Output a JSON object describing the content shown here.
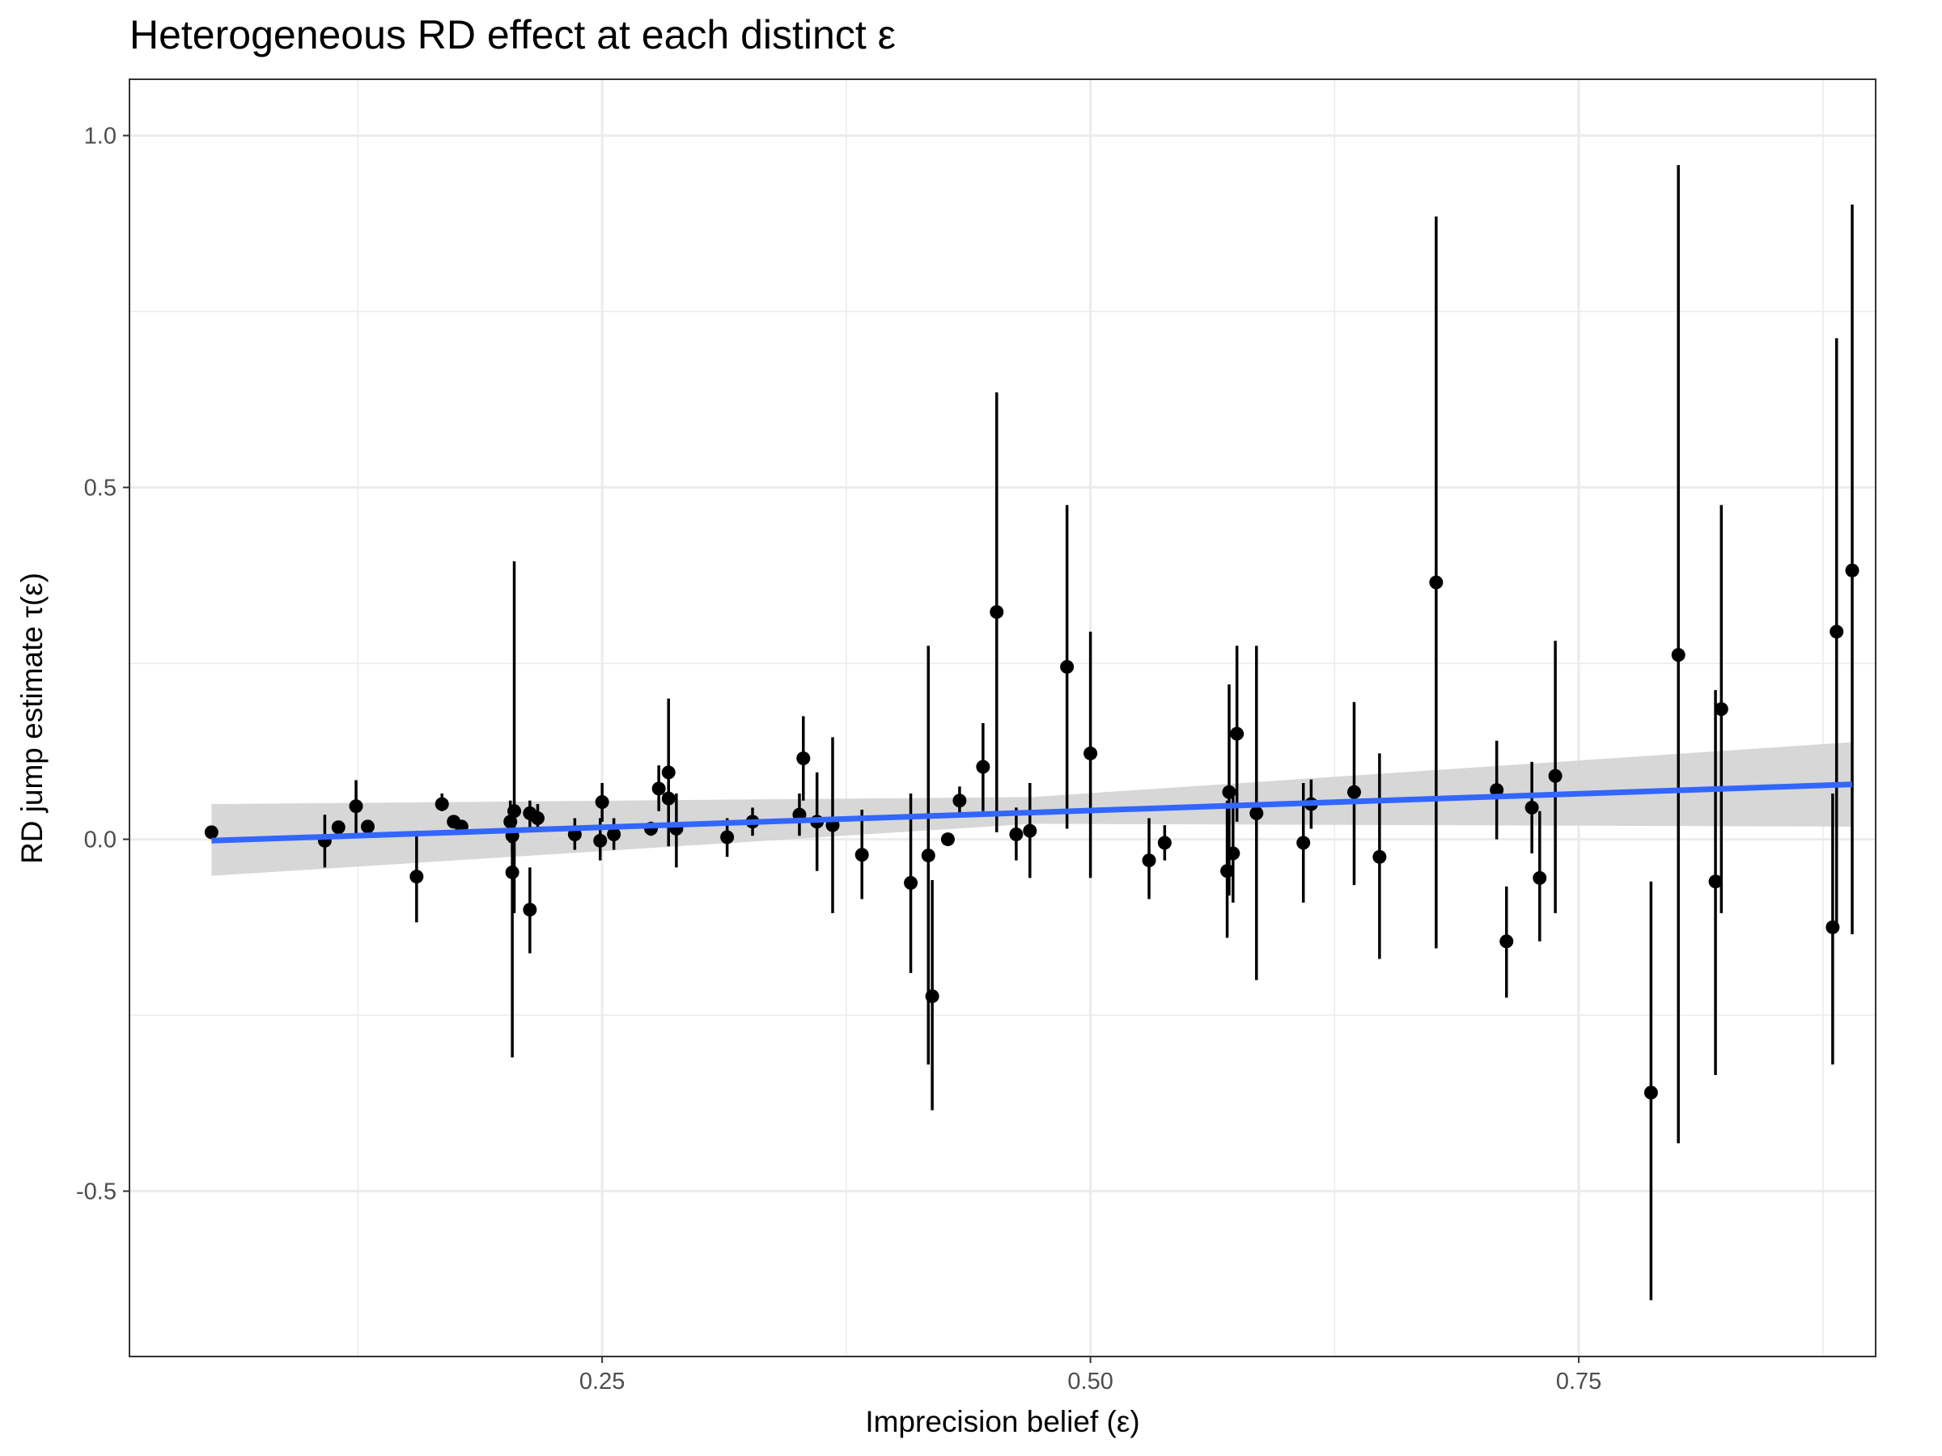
{
  "chart_data": {
    "type": "scatter",
    "title": "Heterogeneous RD effect at each distinct ε",
    "xlabel": "Imprecision belief (ε)",
    "ylabel": "RD jump estimate τ(ε)",
    "xlim": [
      0.008,
      0.902
    ],
    "ylim": [
      -0.735,
      1.08
    ],
    "x_ticks": [
      0.25,
      0.5,
      0.75
    ],
    "x_tick_labels": [
      "0.25",
      "0.50",
      "0.75"
    ],
    "y_ticks": [
      -0.5,
      0.0,
      0.5,
      1.0
    ],
    "y_tick_labels": [
      "-0.5",
      "0.0",
      "0.5",
      "1.0"
    ],
    "grid": true,
    "colors": {
      "points": "#000000",
      "error_bars": "#000000",
      "fit_line": "#3366FF",
      "ribbon": "#D3D3D3",
      "panel_border": "#333333",
      "grid": "#EBEBEB"
    },
    "series": [
      {
        "type": "pointrange",
        "points": [
          {
            "x": 0.05,
            "y": 0.01,
            "lo": 0.005,
            "hi": 0.015
          },
          {
            "x": 0.108,
            "y": -0.002,
            "lo": -0.04,
            "hi": 0.035
          },
          {
            "x": 0.115,
            "y": 0.017,
            "lo": 0.01,
            "hi": 0.024
          },
          {
            "x": 0.124,
            "y": 0.047,
            "lo": 0.005,
            "hi": 0.084
          },
          {
            "x": 0.13,
            "y": 0.018,
            "lo": 0.012,
            "hi": 0.024
          },
          {
            "x": 0.155,
            "y": -0.053,
            "lo": -0.118,
            "hi": 0.012
          },
          {
            "x": 0.168,
            "y": 0.05,
            "lo": 0.04,
            "hi": 0.065
          },
          {
            "x": 0.174,
            "y": 0.025,
            "lo": 0.018,
            "hi": 0.032
          },
          {
            "x": 0.178,
            "y": 0.018,
            "lo": 0.012,
            "hi": 0.024
          },
          {
            "x": 0.203,
            "y": 0.025,
            "lo": -0.005,
            "hi": 0.055
          },
          {
            "x": 0.205,
            "y": 0.04,
            "lo": -0.105,
            "hi": 0.395
          },
          {
            "x": 0.204,
            "y": -0.047,
            "lo": -0.31,
            "hi": 0.04
          },
          {
            "x": 0.204,
            "y": 0.005,
            "lo": -0.02,
            "hi": 0.03
          },
          {
            "x": 0.213,
            "y": -0.1,
            "lo": -0.162,
            "hi": -0.04
          },
          {
            "x": 0.213,
            "y": 0.037,
            "lo": 0.01,
            "hi": 0.055
          },
          {
            "x": 0.217,
            "y": 0.03,
            "lo": 0.01,
            "hi": 0.05
          },
          {
            "x": 0.236,
            "y": 0.007,
            "lo": -0.015,
            "hi": 0.03
          },
          {
            "x": 0.249,
            "y": -0.002,
            "lo": -0.03,
            "hi": 0.03
          },
          {
            "x": 0.25,
            "y": 0.053,
            "lo": 0.025,
            "hi": 0.08
          },
          {
            "x": 0.256,
            "y": 0.007,
            "lo": -0.015,
            "hi": 0.03
          },
          {
            "x": 0.275,
            "y": 0.015,
            "lo": 0.005,
            "hi": 0.025
          },
          {
            "x": 0.279,
            "y": 0.072,
            "lo": 0.04,
            "hi": 0.105
          },
          {
            "x": 0.284,
            "y": 0.095,
            "lo": -0.01,
            "hi": 0.2
          },
          {
            "x": 0.284,
            "y": 0.058,
            "lo": 0.04,
            "hi": 0.08
          },
          {
            "x": 0.288,
            "y": 0.015,
            "lo": -0.04,
            "hi": 0.065
          },
          {
            "x": 0.314,
            "y": 0.003,
            "lo": -0.025,
            "hi": 0.03
          },
          {
            "x": 0.327,
            "y": 0.025,
            "lo": 0.005,
            "hi": 0.045
          },
          {
            "x": 0.351,
            "y": 0.035,
            "lo": 0.005,
            "hi": 0.065
          },
          {
            "x": 0.353,
            "y": 0.115,
            "lo": 0.055,
            "hi": 0.175
          },
          {
            "x": 0.36,
            "y": 0.025,
            "lo": -0.045,
            "hi": 0.095
          },
          {
            "x": 0.368,
            "y": 0.02,
            "lo": -0.105,
            "hi": 0.145
          },
          {
            "x": 0.383,
            "y": -0.022,
            "lo": -0.085,
            "hi": 0.042
          },
          {
            "x": 0.408,
            "y": -0.062,
            "lo": -0.19,
            "hi": 0.065
          },
          {
            "x": 0.417,
            "y": -0.023,
            "lo": -0.32,
            "hi": 0.275
          },
          {
            "x": 0.419,
            "y": -0.223,
            "lo": -0.385,
            "hi": -0.058
          },
          {
            "x": 0.427,
            "y": 0.0,
            "lo": -0.005,
            "hi": 0.005
          },
          {
            "x": 0.433,
            "y": 0.055,
            "lo": 0.035,
            "hi": 0.075
          },
          {
            "x": 0.445,
            "y": 0.103,
            "lo": 0.04,
            "hi": 0.165
          },
          {
            "x": 0.452,
            "y": 0.323,
            "lo": 0.01,
            "hi": 0.635
          },
          {
            "x": 0.462,
            "y": 0.007,
            "lo": -0.03,
            "hi": 0.045
          },
          {
            "x": 0.469,
            "y": 0.012,
            "lo": -0.055,
            "hi": 0.08
          },
          {
            "x": 0.488,
            "y": 0.245,
            "lo": 0.015,
            "hi": 0.475
          },
          {
            "x": 0.5,
            "y": 0.122,
            "lo": -0.055,
            "hi": 0.295
          },
          {
            "x": 0.53,
            "y": -0.03,
            "lo": -0.085,
            "hi": 0.03
          },
          {
            "x": 0.538,
            "y": -0.005,
            "lo": -0.03,
            "hi": 0.02
          },
          {
            "x": 0.57,
            "y": -0.045,
            "lo": -0.14,
            "hi": 0.055
          },
          {
            "x": 0.571,
            "y": 0.067,
            "lo": -0.08,
            "hi": 0.22
          },
          {
            "x": 0.573,
            "y": -0.02,
            "lo": -0.09,
            "hi": 0.06
          },
          {
            "x": 0.575,
            "y": 0.15,
            "lo": 0.025,
            "hi": 0.275
          },
          {
            "x": 0.585,
            "y": 0.037,
            "lo": -0.2,
            "hi": 0.275
          },
          {
            "x": 0.609,
            "y": -0.005,
            "lo": -0.09,
            "hi": 0.08
          },
          {
            "x": 0.613,
            "y": 0.05,
            "lo": 0.015,
            "hi": 0.085
          },
          {
            "x": 0.635,
            "y": 0.067,
            "lo": -0.065,
            "hi": 0.195
          },
          {
            "x": 0.648,
            "y": -0.025,
            "lo": -0.17,
            "hi": 0.122
          },
          {
            "x": 0.677,
            "y": 0.365,
            "lo": -0.155,
            "hi": 0.885
          },
          {
            "x": 0.708,
            "y": 0.07,
            "lo": 0.0,
            "hi": 0.14
          },
          {
            "x": 0.713,
            "y": -0.145,
            "lo": -0.225,
            "hi": -0.067
          },
          {
            "x": 0.726,
            "y": 0.045,
            "lo": -0.02,
            "hi": 0.11
          },
          {
            "x": 0.73,
            "y": -0.055,
            "lo": -0.145,
            "hi": 0.04
          },
          {
            "x": 0.738,
            "y": 0.09,
            "lo": -0.105,
            "hi": 0.282
          },
          {
            "x": 0.787,
            "y": -0.36,
            "lo": -0.655,
            "hi": -0.06
          },
          {
            "x": 0.801,
            "y": 0.262,
            "lo": -0.432,
            "hi": 0.958
          },
          {
            "x": 0.82,
            "y": -0.06,
            "lo": -0.335,
            "hi": 0.212
          },
          {
            "x": 0.823,
            "y": 0.185,
            "lo": -0.105,
            "hi": 0.475
          },
          {
            "x": 0.88,
            "y": -0.125,
            "lo": -0.32,
            "hi": 0.065
          },
          {
            "x": 0.882,
            "y": 0.295,
            "lo": -0.12,
            "hi": 0.712
          },
          {
            "x": 0.89,
            "y": 0.382,
            "lo": -0.135,
            "hi": 0.902
          }
        ]
      },
      {
        "type": "line",
        "fit": "linear",
        "x": [
          0.05,
          0.89
        ],
        "y": [
          -0.002,
          0.078
        ]
      },
      {
        "type": "ribbon",
        "x": [
          0.05,
          0.47,
          0.89
        ],
        "lower": [
          -0.052,
          0.022,
          0.018
        ],
        "upper": [
          0.05,
          0.06,
          0.138
        ]
      }
    ]
  }
}
